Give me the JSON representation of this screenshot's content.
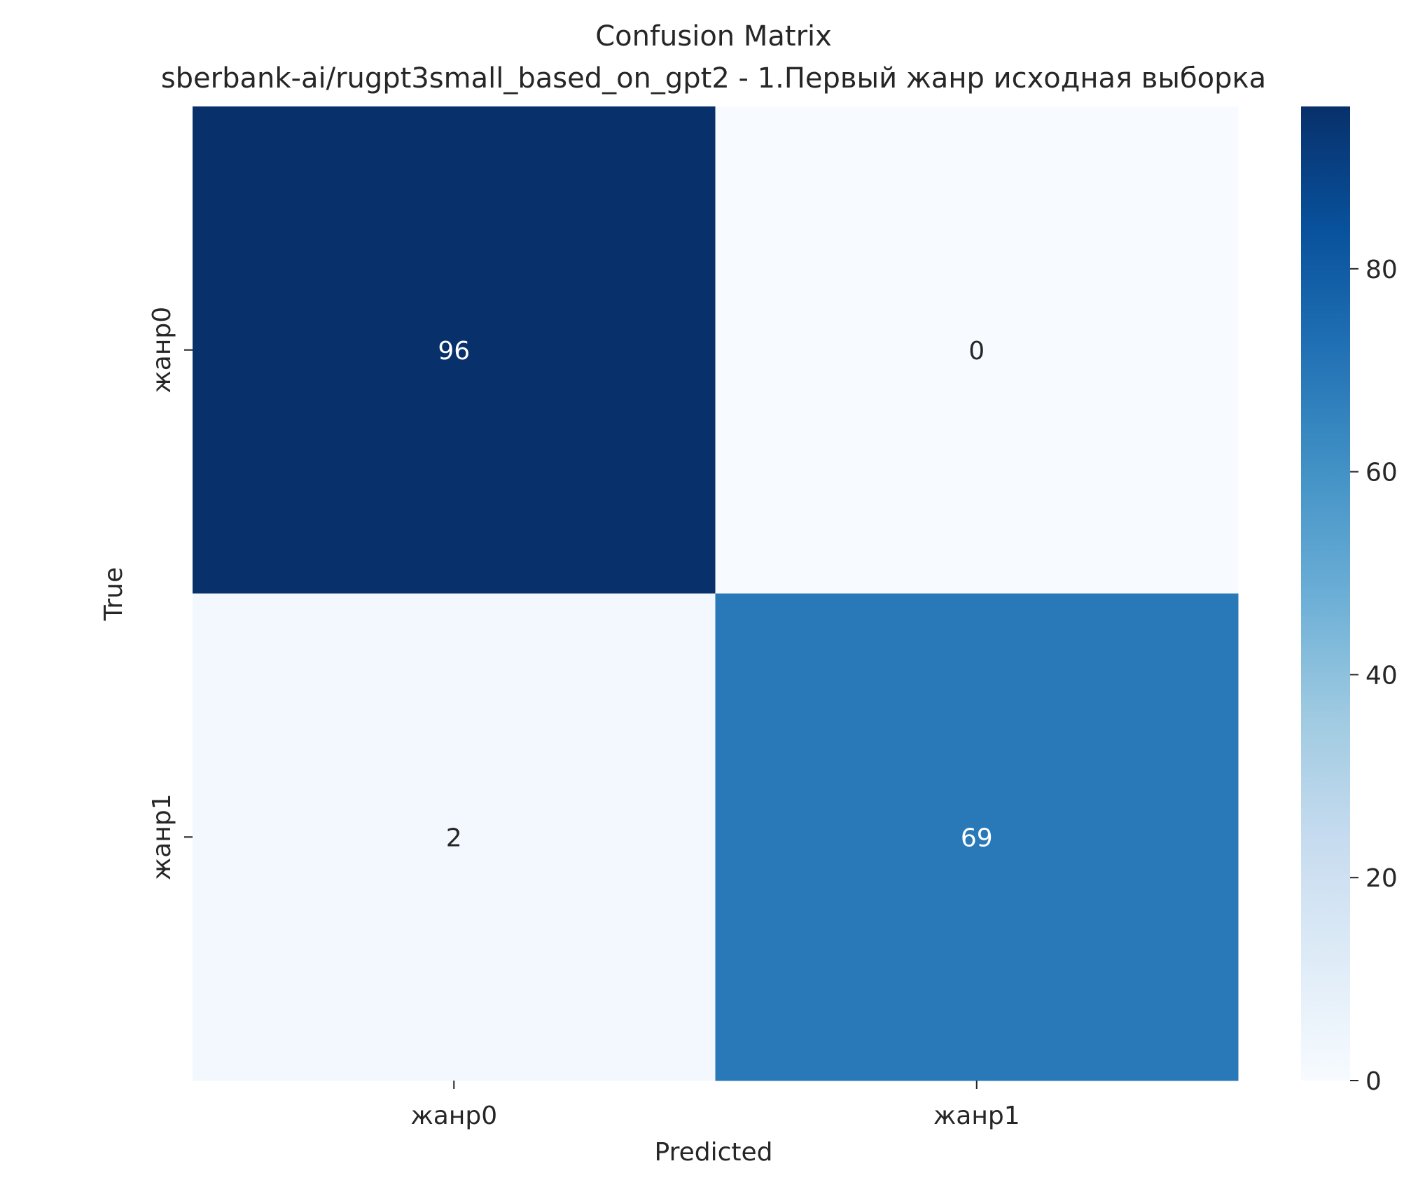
{
  "chart_data": {
    "type": "heatmap",
    "title": "Confusion Matrix",
    "subtitle": "sberbank-ai/rugpt3small_based_on_gpt2 - 1.Первый жанр исходная выборка",
    "xlabel": "Predicted",
    "ylabel": "True",
    "x_categories": [
      "жанр0",
      "жанр1"
    ],
    "y_categories": [
      "жанр0",
      "жанр1"
    ],
    "values": [
      [
        96,
        0
      ],
      [
        2,
        69
      ]
    ],
    "colormap": "Blues",
    "colorbar": {
      "range": [
        0,
        96
      ],
      "ticks": [
        0,
        20,
        40,
        60,
        80
      ],
      "tick_labels": [
        "0",
        "20",
        "40",
        "60",
        "80"
      ]
    },
    "grid": false,
    "annotation_colors": {
      "dark_cell_text": "#ffffff",
      "light_cell_text": "#262626"
    }
  }
}
